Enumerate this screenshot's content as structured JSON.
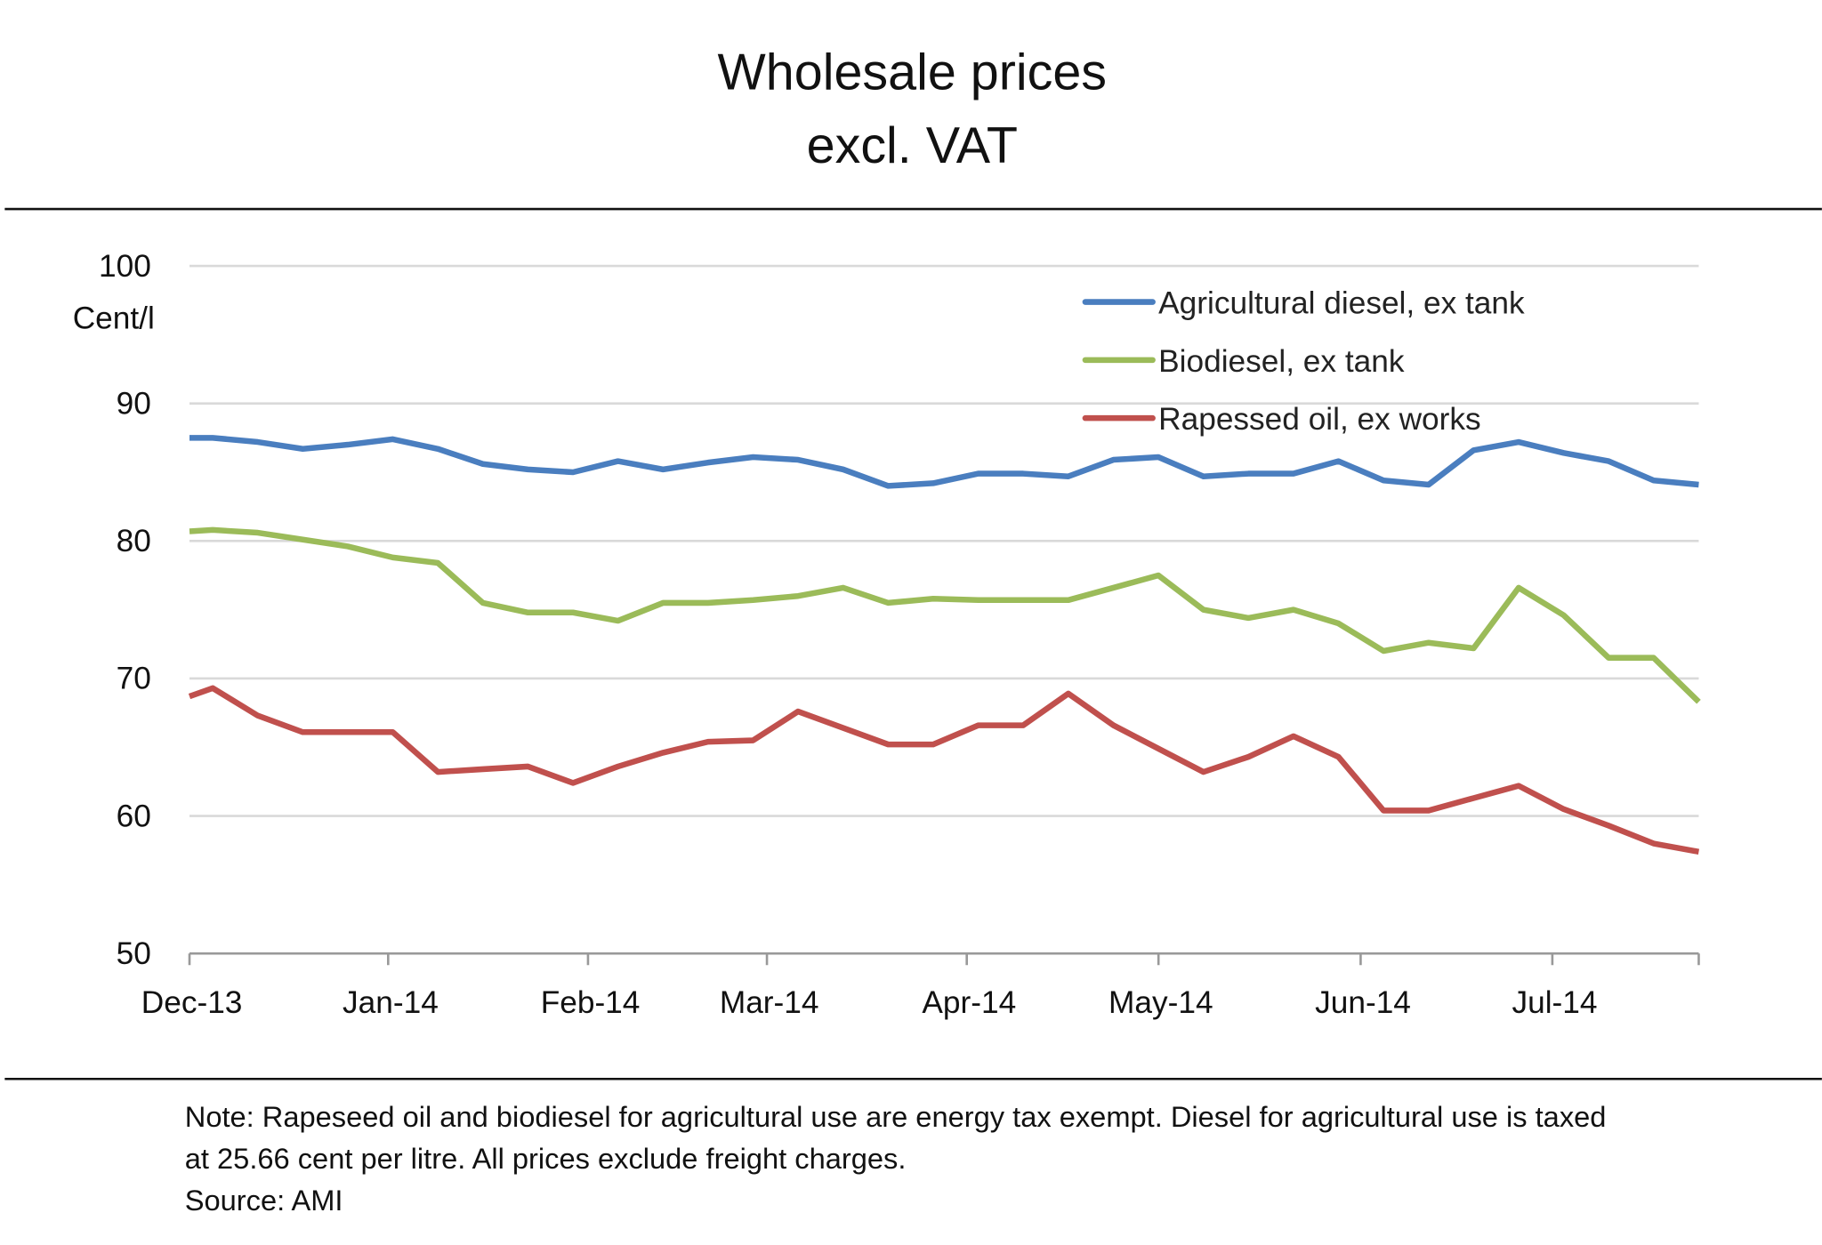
{
  "chart_data": {
    "type": "line",
    "title": [
      "Wholesale prices",
      "excl. VAT"
    ],
    "ylabel": "Cent/l",
    "ylim": [
      50,
      100
    ],
    "yticks": [
      50,
      60,
      70,
      80,
      90,
      100
    ],
    "grid": true,
    "legend_position": "top-right",
    "xticklabels": [
      "Dec-13",
      "Jan-14",
      "Feb-14",
      "Mar-14",
      "Apr-14",
      "May-14",
      "Jun-14",
      "Jul-14"
    ],
    "series": [
      {
        "name": "Agricultural diesel,  ex tank",
        "color": "#4a7ebf",
        "values": [
          87.5,
          87.5,
          87.2,
          86.7,
          87.0,
          87.4,
          86.7,
          85.6,
          85.2,
          85.0,
          85.8,
          85.2,
          85.7,
          86.1,
          85.9,
          85.2,
          84.0,
          84.2,
          84.9,
          84.9,
          84.7,
          85.9,
          86.1,
          84.7,
          84.9,
          84.9,
          85.8,
          84.4,
          84.1,
          86.6,
          87.2,
          86.4,
          85.8,
          84.4,
          84.1
        ]
      },
      {
        "name": "Biodiesel, ex tank",
        "color": "#9bbb59",
        "values": [
          80.7,
          80.8,
          80.6,
          80.1,
          79.6,
          78.8,
          78.4,
          75.5,
          74.8,
          74.8,
          74.2,
          75.5,
          75.5,
          75.7,
          76.0,
          76.6,
          75.5,
          75.8,
          75.7,
          75.7,
          75.7,
          76.6,
          77.5,
          75.0,
          74.4,
          75.0,
          74.0,
          72.0,
          72.6,
          72.2,
          76.6,
          74.6,
          71.5,
          71.5,
          68.3
        ]
      },
      {
        "name": "Rapessed oil, ex works",
        "color": "#c0504d",
        "values": [
          68.7,
          69.3,
          67.3,
          66.1,
          66.1,
          66.1,
          63.2,
          63.4,
          63.6,
          62.4,
          63.6,
          64.6,
          65.4,
          65.5,
          67.6,
          66.4,
          65.2,
          65.2,
          66.6,
          66.6,
          68.9,
          66.6,
          64.9,
          63.2,
          64.3,
          65.8,
          64.3,
          60.4,
          60.4,
          61.3,
          62.2,
          60.5,
          59.3,
          58.0,
          57.4
        ]
      }
    ]
  },
  "note": {
    "line1": "Note:  Rapeseed oil and biodiesel for agricultural use are energy tax exempt. Diesel for agricultural use is taxed",
    "line2": "at 25.66 cent per litre. All prices exclude freight charges.",
    "source": "Source: AMI"
  }
}
